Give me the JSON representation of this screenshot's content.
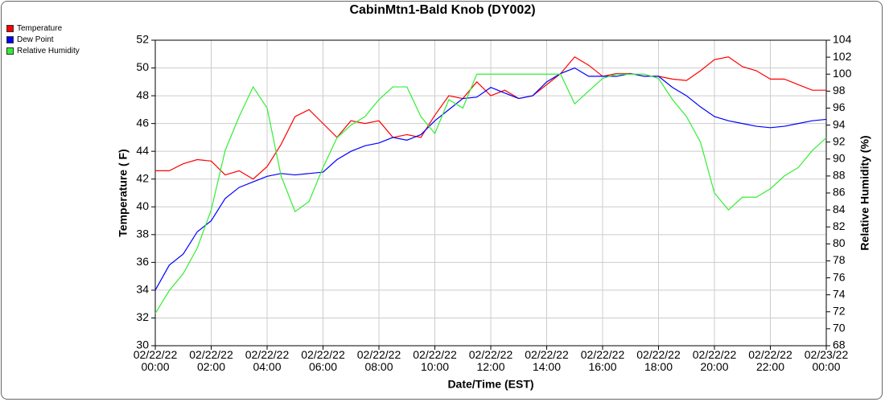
{
  "chart_data": {
    "type": "line",
    "title": "CabinMtn1-Bald Knob (DY002)",
    "x_label": "Date/Time (EST)",
    "y_label": "Temperature ( F)",
    "y2_label": "Relative Humidity (%)",
    "x": [
      "02/22/22 00:00",
      "02/22/22 00:30",
      "02/22/22 01:00",
      "02/22/22 01:30",
      "02/22/22 02:00",
      "02/22/22 02:30",
      "02/22/22 03:00",
      "02/22/22 03:30",
      "02/22/22 04:00",
      "02/22/22 04:30",
      "02/22/22 05:00",
      "02/22/22 05:30",
      "02/22/22 06:00",
      "02/22/22 06:30",
      "02/22/22 07:00",
      "02/22/22 07:30",
      "02/22/22 08:00",
      "02/22/22 08:30",
      "02/22/22 09:00",
      "02/22/22 09:30",
      "02/22/22 10:00",
      "02/22/22 10:30",
      "02/22/22 11:00",
      "02/22/22 11:30",
      "02/22/22 12:00",
      "02/22/22 12:30",
      "02/22/22 13:00",
      "02/22/22 13:30",
      "02/22/22 14:00",
      "02/22/22 14:30",
      "02/22/22 15:00",
      "02/22/22 15:30",
      "02/22/22 16:00",
      "02/22/22 16:30",
      "02/22/22 17:00",
      "02/22/22 17:30",
      "02/22/22 18:00",
      "02/22/22 18:30",
      "02/22/22 19:00",
      "02/22/22 19:30",
      "02/22/22 20:00",
      "02/22/22 20:30",
      "02/22/22 21:00",
      "02/22/22 21:30",
      "02/22/22 22:00",
      "02/22/22 22:30",
      "02/22/22 23:00",
      "02/22/22 23:30",
      "02/23/22 00:00"
    ],
    "series": [
      {
        "name": "Temperature",
        "color": "#ff0000",
        "values": [
          42.6,
          42.6,
          43.1,
          43.4,
          43.3,
          42.3,
          42.6,
          42.0,
          42.9,
          44.5,
          46.5,
          47.0,
          46.0,
          45.0,
          46.2,
          46.0,
          46.2,
          45.0,
          45.2,
          45.0,
          46.6,
          48.0,
          47.8,
          49.0,
          48.0,
          48.4,
          47.8,
          48.0,
          48.8,
          49.6,
          50.8,
          50.2,
          49.4,
          49.6,
          49.6,
          49.4,
          49.4,
          49.2,
          49.1,
          49.8,
          50.6,
          50.8,
          50.1,
          49.8,
          49.2,
          49.2,
          48.8,
          48.4,
          48.4
        ]
      },
      {
        "name": "Dew Point",
        "color": "#0000ff",
        "values": [
          34.0,
          35.8,
          36.6,
          38.2,
          39.0,
          40.6,
          41.4,
          41.8,
          42.2,
          42.4,
          42.3,
          42.4,
          42.5,
          43.4,
          44.0,
          44.4,
          44.6,
          45.0,
          44.8,
          45.2,
          46.2,
          47.0,
          47.8,
          47.9,
          48.6,
          48.2,
          47.8,
          48.0,
          49.0,
          49.6,
          50.0,
          49.4,
          49.4,
          49.4,
          49.6,
          49.4,
          49.4,
          48.6,
          48.0,
          47.2,
          46.5,
          46.2,
          46.0,
          45.8,
          45.7,
          45.8,
          46.0,
          46.2,
          46.3
        ]
      },
      {
        "name": "Relative Humidity",
        "color": "#33ee33",
        "axis": "y2",
        "values": [
          71.8,
          74.5,
          76.5,
          79.5,
          84,
          91,
          95,
          98.5,
          96,
          88,
          83.8,
          85,
          89,
          92.5,
          94,
          95,
          97,
          98.5,
          98.5,
          95,
          93,
          97,
          96,
          100,
          100,
          100,
          100,
          100,
          100,
          100,
          96.5,
          98,
          99.5,
          100,
          100,
          100,
          99.5,
          97,
          95,
          92,
          86,
          84,
          85.5,
          85.5,
          86.5,
          88,
          89,
          91,
          92.5
        ]
      }
    ],
    "xlim": [
      "02/22/22 00:00",
      "02/23/22 00:00"
    ],
    "xticks": [
      "02/22/22 00:00",
      "02/22/22 02:00",
      "02/22/22 04:00",
      "02/22/22 06:00",
      "02/22/22 08:00",
      "02/22/22 10:00",
      "02/22/22 12:00",
      "02/22/22 14:00",
      "02/22/22 16:00",
      "02/22/22 18:00",
      "02/22/22 20:00",
      "02/22/22 22:00",
      "02/23/22 00:00"
    ],
    "ylim": [
      30,
      52
    ],
    "yticks": [
      30,
      32,
      34,
      36,
      38,
      40,
      42,
      44,
      46,
      48,
      50,
      52
    ],
    "y2lim": [
      68,
      104
    ],
    "y2ticks": [
      68,
      70,
      72,
      74,
      76,
      78,
      80,
      82,
      84,
      86,
      88,
      90,
      92,
      94,
      96,
      98,
      100,
      102,
      104
    ],
    "grid": true,
    "legend": "top-left"
  }
}
